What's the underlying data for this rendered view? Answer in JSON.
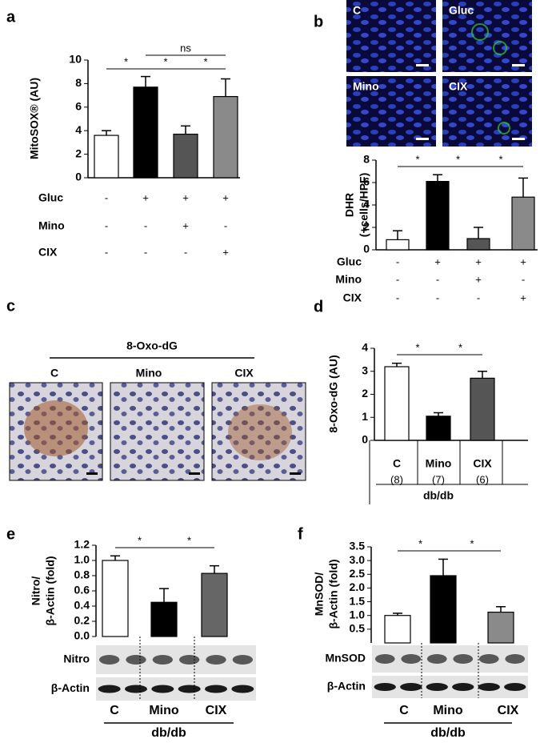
{
  "chart_data": [
    {
      "panel": "a",
      "type": "bar",
      "ylabel": "MitoSOX® (AU)",
      "ylim": [
        0,
        10
      ],
      "yticks": [
        0,
        2,
        4,
        6,
        8,
        10
      ],
      "values": [
        3.6,
        7.7,
        3.7,
        6.9
      ],
      "errors": [
        0.4,
        0.9,
        0.7,
        1.5
      ],
      "colors": [
        "#ffffff",
        "#000000",
        "#555555",
        "#8a8a8a"
      ],
      "significance": [
        "*",
        "*",
        "*",
        "ns"
      ],
      "treatments": [
        {
          "name": "Gluc",
          "signs": [
            "-",
            "+",
            "+",
            "+"
          ]
        },
        {
          "name": "Mino",
          "signs": [
            "-",
            "-",
            "+",
            "-"
          ]
        },
        {
          "name": "CIX",
          "signs": [
            "-",
            "-",
            "-",
            "+"
          ]
        }
      ]
    },
    {
      "panel": "b",
      "type": "bar",
      "ylabel": [
        "DHR",
        "(+cells/HPF)"
      ],
      "ylim": [
        0,
        8
      ],
      "yticks": [
        0,
        2,
        4,
        6,
        8
      ],
      "values": [
        0.9,
        6.1,
        1.0,
        4.7
      ],
      "errors": [
        0.8,
        0.6,
        1.0,
        1.7
      ],
      "colors": [
        "#ffffff",
        "#000000",
        "#555555",
        "#8a8a8a"
      ],
      "significance": [
        "*",
        "*",
        "*"
      ],
      "image_labels": [
        "C",
        "Gluc",
        "Mino",
        "CIX"
      ],
      "treatments": [
        {
          "name": "Gluc",
          "signs": [
            "-",
            "+",
            "+",
            "+"
          ]
        },
        {
          "name": "Mino",
          "signs": [
            "-",
            "-",
            "+",
            "-"
          ]
        },
        {
          "name": "CIX",
          "signs": [
            "-",
            "-",
            "-",
            "+"
          ]
        }
      ]
    },
    {
      "panel": "d",
      "type": "bar",
      "ylabel": "8-Oxo-dG (AU)",
      "ylim": [
        0,
        4
      ],
      "yticks": [
        0,
        1,
        2,
        3,
        4
      ],
      "values": [
        3.2,
        1.05,
        2.7
      ],
      "errors": [
        0.15,
        0.15,
        0.3
      ],
      "colors": [
        "#ffffff",
        "#000000",
        "#555555"
      ],
      "significance": [
        "*",
        "*"
      ],
      "categories": [
        "C",
        "Mino",
        "CIX"
      ],
      "n_labels": [
        "(8)",
        "(7)",
        "(6)"
      ],
      "group_label": "db/db"
    },
    {
      "panel": "e",
      "type": "bar",
      "ylabel": [
        "Nitro/",
        "β-Actin (fold)"
      ],
      "ylim": [
        0,
        1.2
      ],
      "yticks": [
        {
          "value": 0,
          "label": "0.0"
        },
        0.2,
        0.4,
        0.6,
        0.8,
        {
          "value": 1,
          "label": "1.0"
        },
        1.2
      ],
      "values": [
        1.0,
        0.45,
        0.83
      ],
      "errors": [
        0.06,
        0.18,
        0.1
      ],
      "colors": [
        "#ffffff",
        "#000000",
        "#666666"
      ],
      "significance": [
        "*",
        "*"
      ],
      "blot_rows": [
        "Nitro",
        "β-Actin"
      ],
      "categories": [
        "C",
        "Mino",
        "CIX"
      ],
      "group_label": "db/db"
    },
    {
      "panel": "f",
      "type": "bar",
      "ylabel": [
        "MnSOD/",
        "β-Actin (fold)"
      ],
      "ylim": [
        0,
        3.5
      ],
      "yticks": [
        0.5,
        {
          "value": 1,
          "label": "1.0"
        },
        1.5,
        {
          "value": 2,
          "label": "2.0"
        },
        2.5,
        {
          "value": 3,
          "label": "3.0"
        },
        3.5
      ],
      "values": [
        1.0,
        2.45,
        1.12
      ],
      "errors": [
        0.08,
        0.6,
        0.2
      ],
      "colors": [
        "#ffffff",
        "#000000",
        "#8a8a8a"
      ],
      "significance": [
        "*",
        "*"
      ],
      "blot_rows": [
        "MnSOD",
        "β-Actin"
      ],
      "categories": [
        "C",
        "Mino",
        "CIX"
      ],
      "group_label": "db/db"
    }
  ],
  "panel_c": {
    "panel": "c",
    "title": "8-Oxo-dG",
    "labels": [
      "C",
      "Mino",
      "CIX"
    ]
  }
}
